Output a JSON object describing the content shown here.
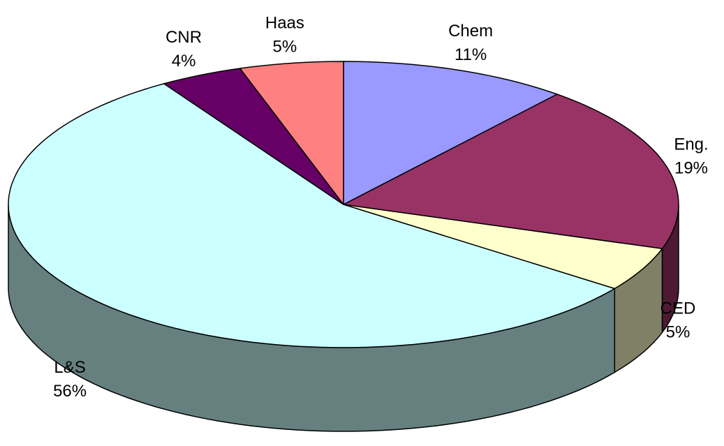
{
  "chart_data": {
    "type": "pie",
    "categories": [
      "Chem",
      "Eng.",
      "CED",
      "L&S",
      "CNR",
      "Haas"
    ],
    "values": [
      11,
      19,
      5,
      56,
      4,
      5
    ],
    "value_labels": [
      "11%",
      "19%",
      "5%",
      "56%",
      "4%",
      "5%"
    ],
    "colors": [
      "#9999ff",
      "#993366",
      "#ffffcc",
      "#ccffff",
      "#660066",
      "#ff8080"
    ]
  }
}
